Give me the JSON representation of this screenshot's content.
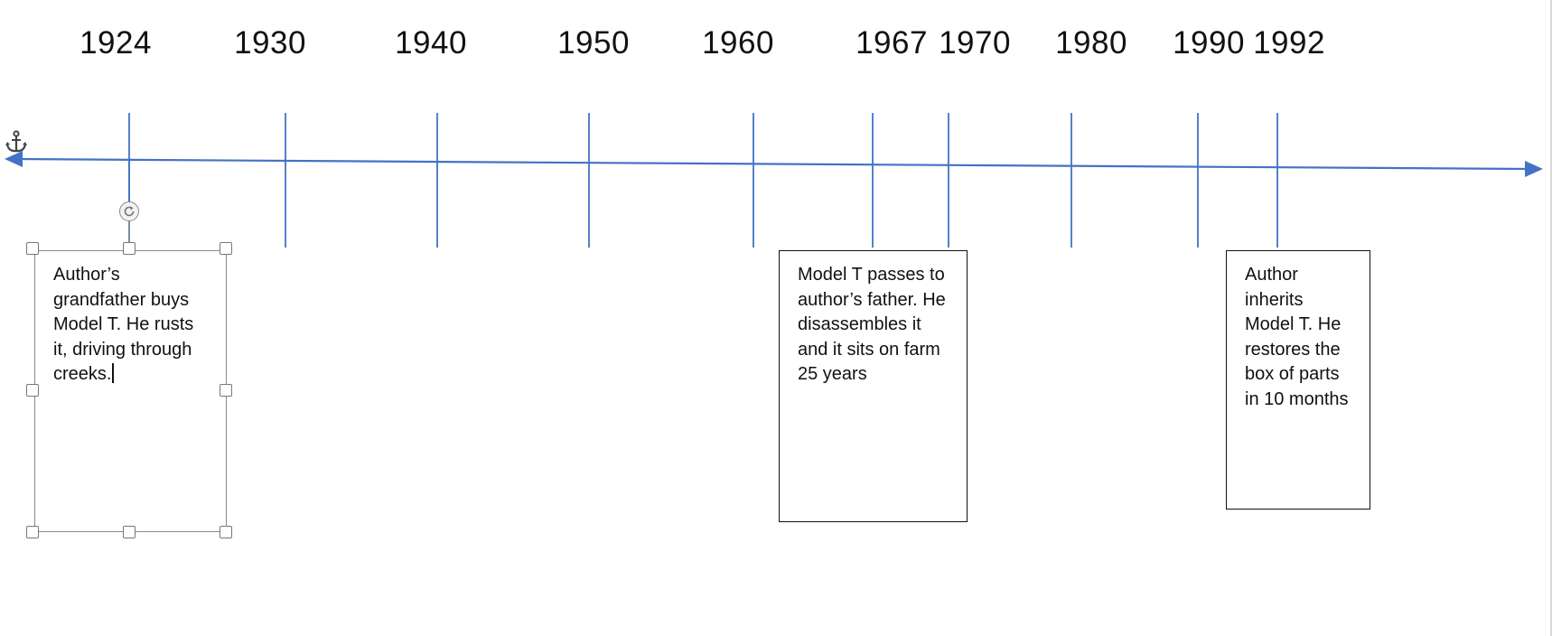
{
  "timeline": {
    "ticks": [
      {
        "year": "1924"
      },
      {
        "year": "1930"
      },
      {
        "year": "1940"
      },
      {
        "year": "1950"
      },
      {
        "year": "1960"
      },
      {
        "year": "1967"
      },
      {
        "year": "1970"
      },
      {
        "year": "1980"
      },
      {
        "year": "1990"
      },
      {
        "year": "1992"
      }
    ],
    "line_color": "#4472C4"
  },
  "events": [
    {
      "text": "Author’s grandfather buys Model T. He rusts it, driving through creeks."
    },
    {
      "text": "Model T passes to author’s father. He disassembles it and it sits on farm 25 years"
    },
    {
      "text": "Author inherits Model T. He restores the box of parts in 10 months"
    }
  ],
  "icons": {
    "anchor": "anchor-icon",
    "rotate": "rotate-handle-icon"
  }
}
